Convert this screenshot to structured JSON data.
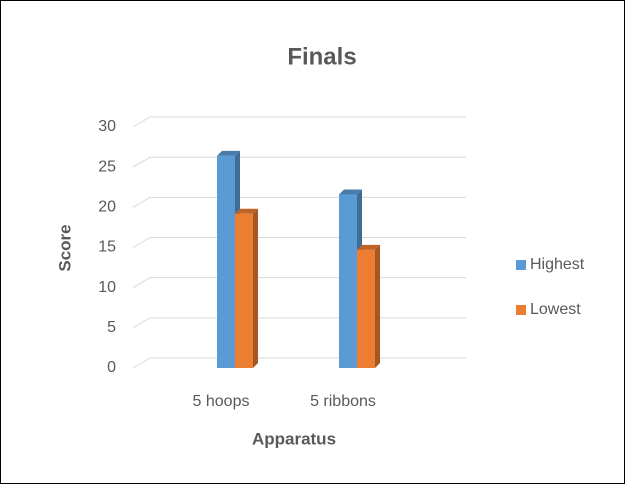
{
  "chart_data": {
    "type": "bar3d",
    "title": "Finals",
    "x_label": "Apparatus",
    "y_label": "Score",
    "categories": [
      "5 hoops",
      "5 ribbons"
    ],
    "series": [
      {
        "name": "Highest",
        "color": "#5b9bd5",
        "values": [
          26.4,
          21.6
        ]
      },
      {
        "name": "Lowest",
        "color": "#ed7d31",
        "values": [
          19.2,
          14.7
        ]
      }
    ],
    "ylim": [
      0,
      30
    ],
    "yticks": [
      0,
      5,
      10,
      15,
      20,
      25,
      30
    ],
    "grid": true,
    "legend": "right"
  }
}
